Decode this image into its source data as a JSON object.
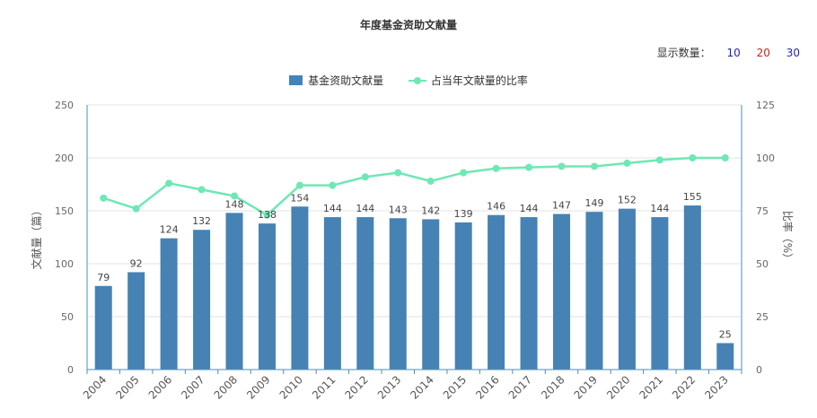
{
  "title": "年度基金资助文献量",
  "display_count": {
    "label": "显示数量：",
    "options": [
      {
        "label": "10",
        "color": "#1f1fbf"
      },
      {
        "label": "20",
        "color": "#d11e1e"
      },
      {
        "label": "30",
        "color": "#1f1fbf"
      }
    ]
  },
  "colors": {
    "bar": "#4682b4",
    "line": "#6ee8b4",
    "axis": "#4a90b8",
    "grid": "#e3e3e3"
  },
  "chart_data": {
    "type": "bar",
    "title": "年度基金资助文献量",
    "categories": [
      "2004",
      "2005",
      "2006",
      "2007",
      "2008",
      "2009",
      "2010",
      "2011",
      "2012",
      "2013",
      "2014",
      "2015",
      "2016",
      "2017",
      "2018",
      "2019",
      "2020",
      "2021",
      "2022",
      "2023"
    ],
    "series": [
      {
        "name": "基金资助文献量",
        "type": "bar",
        "axis": "left",
        "values": [
          79,
          92,
          124,
          132,
          148,
          138,
          154,
          144,
          144,
          143,
          142,
          139,
          146,
          144,
          147,
          149,
          152,
          144,
          155,
          25
        ],
        "data_labels": [
          "79",
          "92",
          "124",
          "132",
          "148",
          "138",
          "154",
          "144",
          "144",
          "143",
          "142",
          "139",
          "146",
          "144",
          "147",
          "149",
          "152",
          "144",
          "155",
          "25"
        ]
      },
      {
        "name": "占当年文献量的比率",
        "type": "line",
        "axis": "right",
        "values": [
          81,
          76,
          88,
          85,
          82,
          73,
          87,
          87,
          91,
          93,
          89,
          93,
          95,
          95.5,
          96,
          96,
          97.5,
          99,
          100,
          100
        ]
      }
    ],
    "ylabel_left": "文献量（篇）",
    "ylabel_right": "比率（%）",
    "ylim_left": [
      0,
      250
    ],
    "yticks_left": [
      "0",
      "50",
      "100",
      "150",
      "200",
      "250"
    ],
    "ylim_right": [
      0,
      125
    ],
    "yticks_right": [
      "0",
      "25",
      "50",
      "75",
      "100",
      "125"
    ],
    "legend_position": "top-center",
    "grid": true
  }
}
